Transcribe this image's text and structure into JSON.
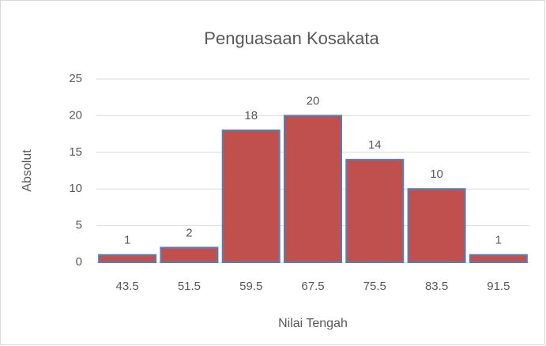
{
  "chart_data": {
    "type": "bar",
    "title": "Penguasaan Kosakata",
    "x_label": "Nilai Tengah",
    "y_label": "Absolut",
    "categories": [
      "43.5",
      "51.5",
      "59.5",
      "67.5",
      "75.5",
      "83.5",
      "91.5"
    ],
    "values": [
      1,
      2,
      18,
      20,
      14,
      10,
      1
    ],
    "color": "#c0504d",
    "edge_color": "#4f81bd",
    "ylim": [
      0,
      25
    ],
    "yticks": [
      0,
      5,
      10,
      15,
      20,
      25
    ],
    "grid": true
  }
}
